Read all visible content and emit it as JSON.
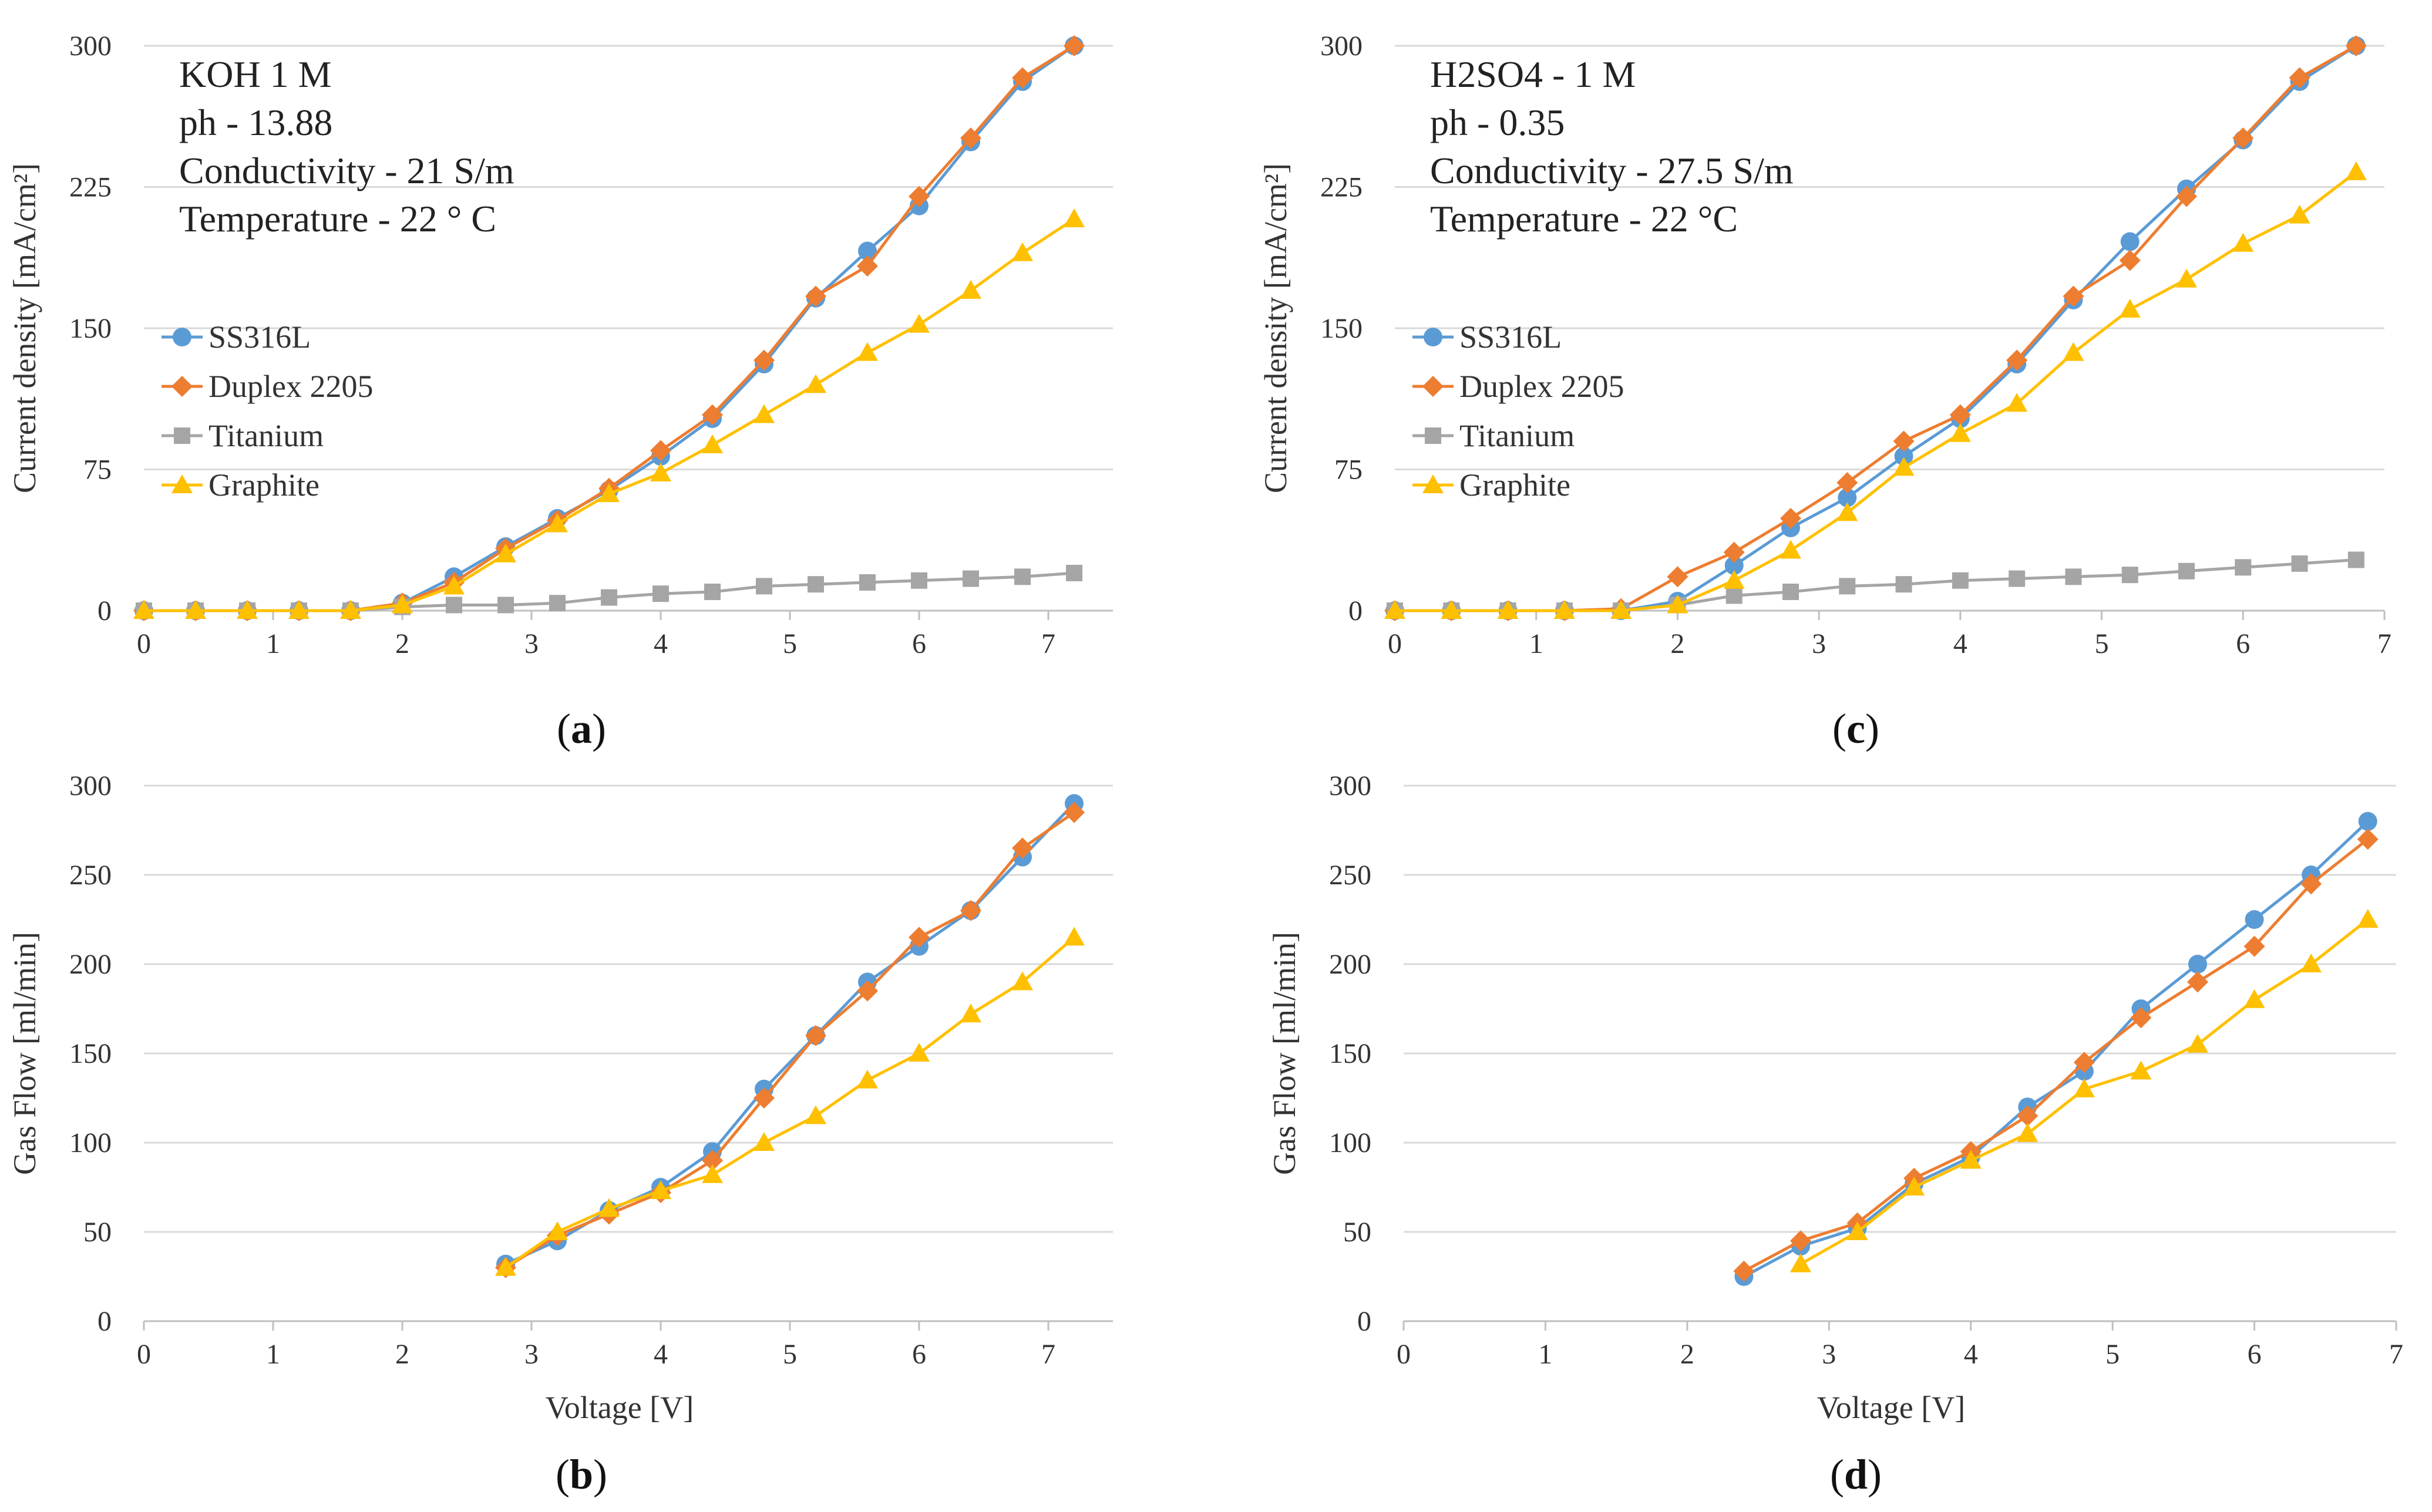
{
  "colors": {
    "SS316L": "#5b9bd5",
    "Duplex 2205": "#ed7d31",
    "Titanium": "#a5a5a5",
    "Graphite": "#ffc000",
    "grid": "#d9d9d9"
  },
  "chart_data": [
    {
      "id": "a",
      "type": "line",
      "caption_prefix": "(",
      "caption_letter": "a",
      "caption_suffix": ")",
      "xlabel": "",
      "ylabel": "Current density  [mA/cm²]",
      "xlim": [
        0,
        7.5
      ],
      "ylim": [
        0,
        300
      ],
      "xticks": [
        0,
        1,
        2,
        3,
        4,
        5,
        6,
        7
      ],
      "yticks": [
        0,
        75,
        150,
        225,
        300
      ],
      "annotations": [
        "KOH 1 M",
        "ph - 13.88",
        "Conductivity - 21 S/m",
        "Temperature - 22 ° C"
      ],
      "legend": [
        "SS316L",
        "Duplex 2205",
        "Titanium",
        "Graphite"
      ],
      "series": [
        {
          "name": "SS316L",
          "marker": "circle",
          "x": [
            0,
            0.4,
            0.8,
            1.2,
            1.6,
            2,
            2.4,
            2.8,
            3.2,
            3.6,
            4,
            4.4,
            4.8,
            5.2,
            5.6,
            6,
            6.4,
            6.8,
            7.2
          ],
          "y": [
            0,
            0,
            0,
            0,
            0,
            4,
            18,
            34,
            49,
            64,
            82,
            102,
            131,
            166,
            191,
            215,
            249,
            281,
            300
          ]
        },
        {
          "name": "Duplex 2205",
          "marker": "diamond",
          "x": [
            0,
            0.4,
            0.8,
            1.2,
            1.6,
            2,
            2.4,
            2.8,
            3.2,
            3.6,
            4,
            4.4,
            4.8,
            5.2,
            5.6,
            6,
            6.4,
            6.8,
            7.2
          ],
          "y": [
            0,
            0,
            0,
            0,
            0,
            4,
            15,
            33,
            48,
            65,
            85,
            104,
            133,
            167,
            183,
            220,
            251,
            283,
            300
          ]
        },
        {
          "name": "Titanium",
          "marker": "square",
          "x": [
            0,
            0.4,
            0.8,
            1.2,
            1.6,
            2,
            2.4,
            2.8,
            3.2,
            3.6,
            4,
            4.4,
            4.8,
            5.2,
            5.6,
            6,
            6.4,
            6.8,
            7.2
          ],
          "y": [
            0,
            0,
            0,
            0,
            0,
            2,
            3,
            3,
            4,
            7,
            9,
            10,
            13,
            14,
            15,
            16,
            17,
            18,
            20
          ]
        },
        {
          "name": "Graphite",
          "marker": "triangle",
          "x": [
            0,
            0.4,
            0.8,
            1.2,
            1.6,
            2,
            2.4,
            2.8,
            3.2,
            3.6,
            4,
            4.4,
            4.8,
            5.2,
            5.6,
            6,
            6.4,
            6.8,
            7.2
          ],
          "y": [
            0,
            0,
            0,
            0,
            0,
            3,
            13,
            30,
            46,
            62,
            73,
            88,
            104,
            120,
            137,
            152,
            170,
            190,
            208
          ]
        }
      ]
    },
    {
      "id": "b",
      "type": "line",
      "caption_prefix": "(",
      "caption_letter": "b",
      "caption_suffix": ")",
      "xlabel": "Voltage [V]",
      "ylabel": "Gas Flow [ml/min]",
      "xlim": [
        0,
        7.5
      ],
      "ylim": [
        0,
        300
      ],
      "xticks": [
        0,
        1,
        2,
        3,
        4,
        5,
        6,
        7
      ],
      "yticks": [
        0,
        50,
        100,
        150,
        200,
        250,
        300
      ],
      "annotations": [],
      "legend": [],
      "series": [
        {
          "name": "SS316L",
          "marker": "circle",
          "x": [
            2.8,
            3.2,
            3.6,
            4,
            4.4,
            4.8,
            5.2,
            5.6,
            6,
            6.4,
            6.8,
            7.2
          ],
          "y": [
            32,
            45,
            62,
            75,
            95,
            130,
            160,
            190,
            210,
            230,
            260,
            290
          ]
        },
        {
          "name": "Duplex 2205",
          "marker": "diamond",
          "x": [
            2.8,
            3.2,
            3.6,
            4,
            4.4,
            4.8,
            5.2,
            5.6,
            6,
            6.4,
            6.8,
            7.2
          ],
          "y": [
            30,
            48,
            60,
            72,
            90,
            125,
            160,
            185,
            215,
            230,
            265,
            285
          ]
        },
        {
          "name": "Graphite",
          "marker": "triangle",
          "x": [
            2.8,
            3.2,
            3.6,
            4,
            4.4,
            4.8,
            5.2,
            5.6,
            6,
            6.4,
            6.8,
            7.2
          ],
          "y": [
            30,
            50,
            63,
            73,
            82,
            100,
            115,
            135,
            150,
            172,
            190,
            215
          ]
        }
      ]
    },
    {
      "id": "c",
      "type": "line",
      "caption_prefix": "(",
      "caption_letter": "c",
      "caption_suffix": ")",
      "xlabel": "",
      "ylabel": "Current density  [mA/cm²]",
      "xlim": [
        0,
        7
      ],
      "ylim": [
        0,
        300
      ],
      "xticks": [
        0,
        1,
        2,
        3,
        4,
        5,
        6,
        7
      ],
      "yticks": [
        0,
        75,
        150,
        225,
        300
      ],
      "annotations": [
        "H2SO4 - 1 M",
        "ph - 0.35",
        "Conductivity - 27.5 S/m",
        "Temperature - 22 °C"
      ],
      "legend": [
        "SS316L",
        "Duplex 2205",
        "Titanium",
        "Graphite"
      ],
      "series": [
        {
          "name": "SS316L",
          "marker": "circle",
          "x": [
            0,
            0.4,
            0.8,
            1.2,
            1.6,
            2,
            2.4,
            2.8,
            3.2,
            3.6,
            4,
            4.4,
            4.8,
            5.2,
            5.6,
            6,
            6.4,
            6.8
          ],
          "y": [
            0,
            0,
            0,
            0,
            0,
            5,
            24,
            44,
            60,
            82,
            102,
            131,
            165,
            196,
            224,
            250,
            281,
            300
          ]
        },
        {
          "name": "Duplex 2205",
          "marker": "diamond",
          "x": [
            0,
            0.4,
            0.8,
            1.2,
            1.6,
            2,
            2.4,
            2.8,
            3.2,
            3.6,
            4,
            4.4,
            4.8,
            5.2,
            5.6,
            6,
            6.4,
            6.8
          ],
          "y": [
            0,
            0,
            0,
            0,
            1,
            18,
            31,
            49,
            68,
            90,
            104,
            133,
            167,
            186,
            220,
            251,
            283,
            300
          ]
        },
        {
          "name": "Titanium",
          "marker": "square",
          "x": [
            0,
            0.4,
            0.8,
            1.2,
            1.6,
            2,
            2.4,
            2.8,
            3.2,
            3.6,
            4,
            4.4,
            4.8,
            5.2,
            5.6,
            6,
            6.4,
            6.8
          ],
          "y": [
            0,
            0,
            0,
            0,
            0,
            3,
            8,
            10,
            13,
            14,
            16,
            17,
            18,
            19,
            21,
            23,
            25,
            27
          ]
        },
        {
          "name": "Graphite",
          "marker": "triangle",
          "x": [
            0,
            0.4,
            0.8,
            1.2,
            1.6,
            2,
            2.4,
            2.8,
            3.2,
            3.6,
            4,
            4.4,
            4.8,
            5.2,
            5.6,
            6,
            6.4,
            6.8
          ],
          "y": [
            0,
            0,
            0,
            0,
            0,
            3,
            16,
            32,
            52,
            76,
            94,
            110,
            137,
            160,
            176,
            195,
            210,
            233
          ]
        }
      ]
    },
    {
      "id": "d",
      "type": "line",
      "caption_prefix": "(",
      "caption_letter": "d",
      "caption_suffix": ")",
      "xlabel": "Voltage [V]",
      "ylabel": "Gas Flow [ml/min]",
      "xlim": [
        0,
        7
      ],
      "ylim": [
        0,
        300
      ],
      "xticks": [
        0,
        1,
        2,
        3,
        4,
        5,
        6,
        7
      ],
      "yticks": [
        0,
        50,
        100,
        150,
        200,
        250,
        300
      ],
      "annotations": [],
      "legend": [],
      "series": [
        {
          "name": "SS316L",
          "marker": "circle",
          "x": [
            2.4,
            2.8,
            3.2,
            3.6,
            4,
            4.4,
            4.8,
            5.2,
            5.6,
            6,
            6.4,
            6.8
          ],
          "y": [
            25,
            42,
            52,
            77,
            92,
            120,
            140,
            175,
            200,
            225,
            250,
            280
          ]
        },
        {
          "name": "Duplex 2205",
          "marker": "diamond",
          "x": [
            2.4,
            2.8,
            3.2,
            3.6,
            4,
            4.4,
            4.8,
            5.2,
            5.6,
            6,
            6.4,
            6.8
          ],
          "y": [
            28,
            45,
            55,
            80,
            95,
            115,
            145,
            170,
            190,
            210,
            245,
            270
          ]
        },
        {
          "name": "Graphite",
          "marker": "triangle",
          "x": [
            2.8,
            3.2,
            3.6,
            4,
            4.4,
            4.8,
            5.2,
            5.6,
            6,
            6.4,
            6.8
          ],
          "y": [
            32,
            50,
            75,
            90,
            105,
            130,
            140,
            155,
            180,
            200,
            225
          ]
        }
      ]
    }
  ]
}
